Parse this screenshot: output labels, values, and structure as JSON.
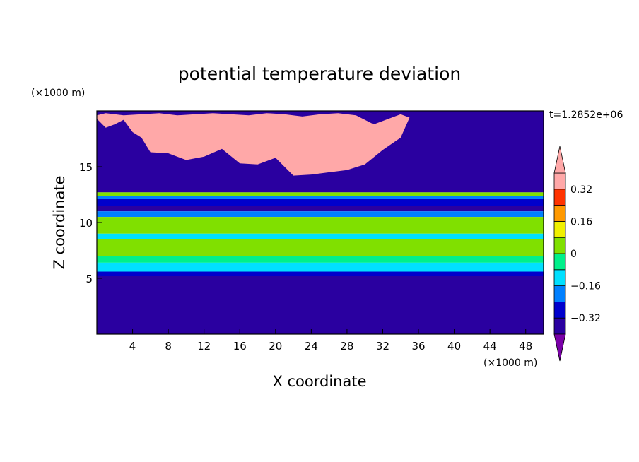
{
  "chart_data": {
    "type": "heatmap",
    "title": "potential temperature deviation",
    "xlabel": "X coordinate",
    "ylabel": "Z coordinate",
    "x_unit_label": "(×1000 m)",
    "y_unit_label": "(×1000 m)",
    "time_label": "t=1.2852e+06",
    "xlim": [
      0,
      50
    ],
    "ylim": [
      0,
      20
    ],
    "x_ticks": [
      "4",
      "8",
      "12",
      "16",
      "20",
      "24",
      "28",
      "32",
      "36",
      "40",
      "44",
      "48"
    ],
    "y_ticks": [
      "5",
      "10",
      "15"
    ],
    "x_tick_values": [
      4,
      8,
      12,
      16,
      20,
      24,
      28,
      32,
      36,
      40,
      44,
      48
    ],
    "y_tick_values": [
      5,
      10,
      15
    ],
    "colorbar": {
      "levels": [
        -0.4,
        -0.32,
        -0.24,
        -0.16,
        -0.08,
        0,
        0.08,
        0.16,
        0.24,
        0.32,
        0.4
      ],
      "labels": [
        "0.32",
        "0.16",
        "0",
        "−0.16",
        "−0.32"
      ],
      "label_values": [
        0.32,
        0.16,
        0,
        -0.16,
        -0.32
      ],
      "colors": [
        "#7a00a8",
        "#2a00a0",
        "#0000cc",
        "#0080ff",
        "#00e0ff",
        "#00f08a",
        "#80e000",
        "#f0f000",
        "#ff9900",
        "#ff3300",
        "#ffa8a8"
      ],
      "extend": "both"
    },
    "layers": {
      "z_bands": [
        {
          "z": [
            12.7,
            20
          ],
          "value": -0.4
        },
        {
          "z": [
            12.4,
            12.7
          ],
          "value": 0.0
        },
        {
          "z": [
            12.1,
            12.4
          ],
          "value": -0.2
        },
        {
          "z": [
            11.5,
            12.1
          ],
          "value": -0.3
        },
        {
          "z": [
            11.0,
            11.5
          ],
          "value": -0.35
        },
        {
          "z": [
            10.5,
            11.0
          ],
          "value": -0.2
        },
        {
          "z": [
            9.8,
            10.5
          ],
          "value": 0.02
        },
        {
          "z": [
            9.0,
            9.8
          ],
          "value": 0.06
        },
        {
          "z": [
            8.5,
            9.0
          ],
          "value": -0.12
        },
        {
          "z": [
            7.0,
            8.5
          ],
          "value": 0.02
        },
        {
          "z": [
            6.4,
            7.0
          ],
          "value": -0.04
        },
        {
          "z": [
            5.6,
            6.4
          ],
          "value": -0.1
        },
        {
          "z": [
            5.2,
            5.6
          ],
          "value": -0.3
        },
        {
          "z": [
            5.0,
            5.2
          ],
          "value": -0.38
        },
        {
          "z": [
            0,
            5.0
          ],
          "value": -0.4
        }
      ],
      "warm_region_upper": {
        "x": [
          0,
          1,
          2,
          3,
          4,
          5,
          6,
          8,
          10,
          12,
          14,
          16,
          18,
          20,
          22,
          24,
          26,
          28,
          30,
          32,
          34,
          35,
          34,
          33,
          31,
          29,
          27,
          25,
          23,
          21,
          19,
          17,
          15,
          13,
          11,
          9,
          7,
          5,
          3,
          1,
          0
        ],
        "z": [
          19.3,
          18.5,
          18.8,
          19.2,
          18.1,
          17.6,
          16.3,
          16.2,
          15.6,
          15.9,
          16.6,
          15.3,
          15.2,
          15.8,
          14.2,
          14.3,
          14.5,
          14.7,
          15.2,
          16.5,
          17.6,
          19.4,
          19.7,
          19.4,
          18.8,
          19.6,
          19.8,
          19.7,
          19.5,
          19.7,
          19.8,
          19.6,
          19.7,
          19.8,
          19.7,
          19.6,
          19.8,
          19.7,
          19.6,
          19.8,
          19.6
        ],
        "value": 0.45
      }
    }
  }
}
